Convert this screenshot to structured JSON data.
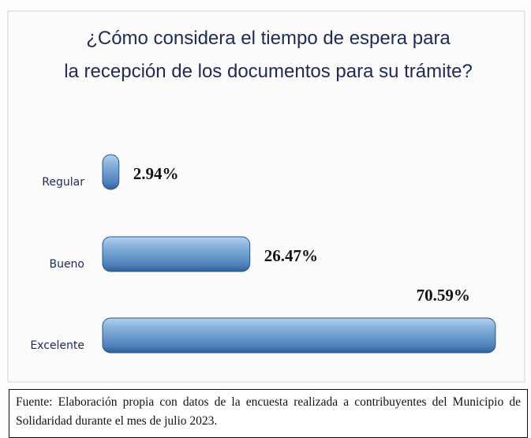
{
  "chart_data": {
    "type": "bar",
    "orientation": "horizontal",
    "title": "¿Cómo considera el tiempo de espera para la recepción de los documentos para su trámite?",
    "categories": [
      "Regular",
      "Bueno",
      "Excelente"
    ],
    "values": [
      2.94,
      26.47,
      70.59
    ],
    "value_labels": [
      "2.94%",
      "26.47%",
      "70.59%"
    ],
    "color": "#5b8fc6",
    "xlim": [
      0,
      75
    ]
  },
  "source": "Fuente: Elaboración propia con datos de la encuesta realizada a contribuyentes del Municipio de Solidaridad durante el mes de julio 2023."
}
